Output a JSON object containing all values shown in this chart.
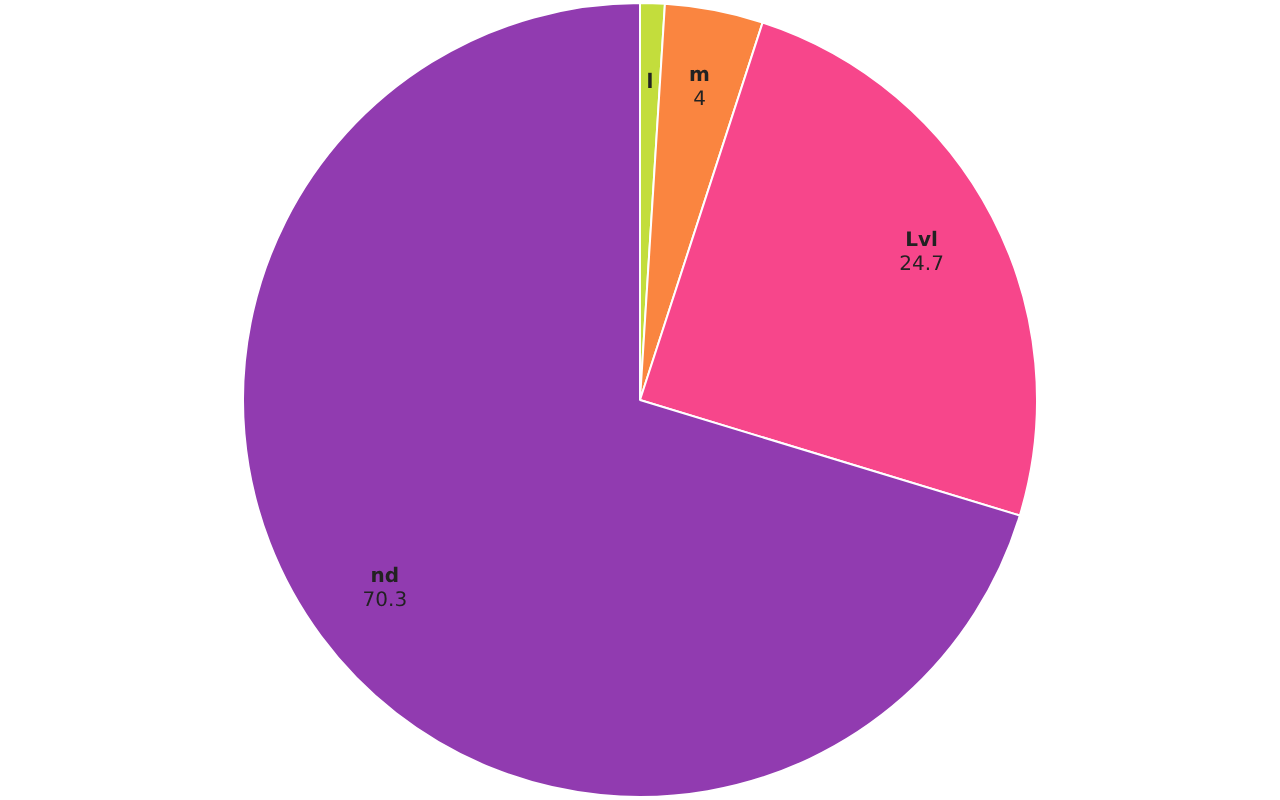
{
  "chart_data": {
    "type": "pie",
    "categories": [
      "l",
      "m",
      "Lvl",
      "nd"
    ],
    "values": [
      1,
      4,
      24.7,
      70.3
    ],
    "colors": [
      "#c3dd3c",
      "#fa8540",
      "#f7468b",
      "#913bb0"
    ],
    "value_labels": [
      null,
      "4",
      "24.7",
      "70.3"
    ],
    "legend": false
  }
}
